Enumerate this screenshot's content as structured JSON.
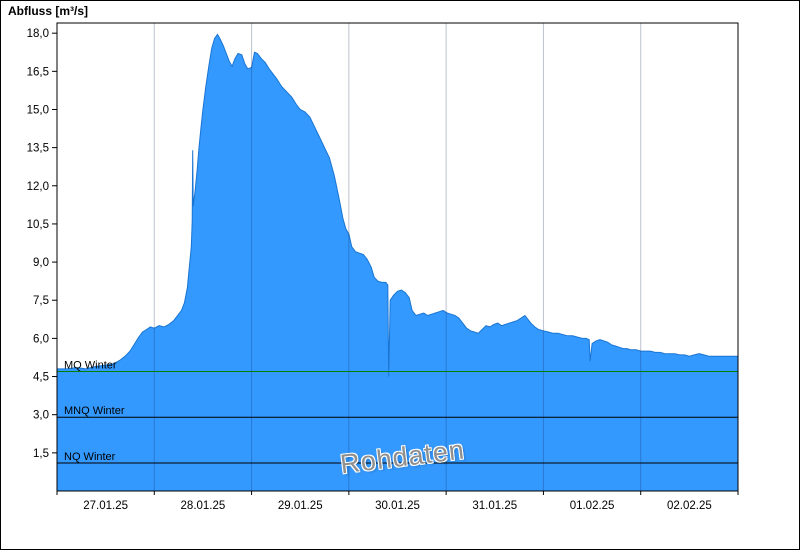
{
  "title": "Abfluss [m³/s]",
  "watermark": "Rohdaten",
  "chart_data": {
    "type": "area",
    "title": "Abfluss [m³/s]",
    "xlabel": "",
    "ylabel": "Abfluss [m³/s]",
    "x_unit": "days since 27.01.25 00:00",
    "xlim": [
      0,
      7
    ],
    "ylim": [
      0,
      18.4
    ],
    "grid": "vertical-day-boundaries-only",
    "legend": "none",
    "colors": {
      "area_fill": "#3399FF",
      "area_stroke": "#1A75D2",
      "grid": "rgba(20,40,90,0.28)",
      "frame": "#000000",
      "mq_line": "#008000",
      "ref_line": "#000000"
    },
    "yticks": [
      1.5,
      3,
      4.5,
      6,
      7.5,
      9,
      10.5,
      12,
      13.5,
      15,
      16.5,
      18
    ],
    "ytick_labels": [
      "1,5",
      "3,0",
      "4,5",
      "6,0",
      "7,5",
      "9,0",
      "10,5",
      "12,0",
      "13,5",
      "15,0",
      "16,5",
      "18,0"
    ],
    "xtick_positions": [
      0.5,
      1.5,
      2.5,
      3.5,
      4.5,
      5.5,
      6.5
    ],
    "xtick_labels": [
      "27.01.25",
      "28.01.25",
      "29.01.25",
      "30.01.25",
      "31.01.25",
      "01.02.25",
      "02.02.25"
    ],
    "day_boundaries": [
      1,
      2,
      3,
      4,
      5,
      6
    ],
    "reference_lines": [
      {
        "label": "MQ Winter",
        "value": 4.7,
        "color": "#008000"
      },
      {
        "label": "MNQ Winter",
        "value": 2.9,
        "color": "#000000"
      },
      {
        "label": "NQ Winter",
        "value": 1.1,
        "color": "#000000"
      }
    ],
    "series": [
      {
        "name": "Rohdaten",
        "points": [
          [
            0.0,
            4.8
          ],
          [
            0.1,
            4.8
          ],
          [
            0.2,
            4.85
          ],
          [
            0.3,
            4.8
          ],
          [
            0.4,
            4.9
          ],
          [
            0.5,
            4.95
          ],
          [
            0.58,
            5.0
          ],
          [
            0.65,
            5.15
          ],
          [
            0.7,
            5.3
          ],
          [
            0.75,
            5.5
          ],
          [
            0.8,
            5.8
          ],
          [
            0.84,
            6.05
          ],
          [
            0.88,
            6.25
          ],
          [
            0.92,
            6.35
          ],
          [
            0.96,
            6.45
          ],
          [
            1.0,
            6.4
          ],
          [
            1.05,
            6.5
          ],
          [
            1.1,
            6.45
          ],
          [
            1.15,
            6.55
          ],
          [
            1.2,
            6.7
          ],
          [
            1.24,
            6.9
          ],
          [
            1.28,
            7.1
          ],
          [
            1.31,
            7.4
          ],
          [
            1.34,
            8.0
          ],
          [
            1.36,
            8.8
          ],
          [
            1.38,
            9.6
          ],
          [
            1.39,
            10.6
          ],
          [
            1.395,
            13.4
          ],
          [
            1.4,
            11.2
          ],
          [
            1.42,
            11.8
          ],
          [
            1.44,
            12.6
          ],
          [
            1.46,
            13.5
          ],
          [
            1.48,
            14.3
          ],
          [
            1.5,
            15.0
          ],
          [
            1.53,
            15.9
          ],
          [
            1.56,
            16.7
          ],
          [
            1.59,
            17.4
          ],
          [
            1.62,
            17.8
          ],
          [
            1.65,
            17.95
          ],
          [
            1.68,
            17.75
          ],
          [
            1.71,
            17.5
          ],
          [
            1.74,
            17.2
          ],
          [
            1.77,
            16.9
          ],
          [
            1.8,
            16.7
          ],
          [
            1.83,
            17.0
          ],
          [
            1.86,
            17.2
          ],
          [
            1.9,
            17.15
          ],
          [
            1.93,
            16.8
          ],
          [
            1.96,
            16.6
          ],
          [
            2.0,
            16.65
          ],
          [
            2.03,
            17.25
          ],
          [
            2.06,
            17.2
          ],
          [
            2.1,
            17.0
          ],
          [
            2.14,
            16.85
          ],
          [
            2.18,
            16.6
          ],
          [
            2.22,
            16.4
          ],
          [
            2.26,
            16.2
          ],
          [
            2.31,
            15.9
          ],
          [
            2.36,
            15.7
          ],
          [
            2.41,
            15.5
          ],
          [
            2.46,
            15.2
          ],
          [
            2.5,
            15.0
          ],
          [
            2.55,
            14.9
          ],
          [
            2.6,
            14.7
          ],
          [
            2.65,
            14.3
          ],
          [
            2.7,
            13.9
          ],
          [
            2.75,
            13.5
          ],
          [
            2.8,
            13.1
          ],
          [
            2.85,
            12.4
          ],
          [
            2.9,
            11.5
          ],
          [
            2.94,
            10.7
          ],
          [
            2.97,
            10.3
          ],
          [
            3.0,
            10.1
          ],
          [
            3.03,
            9.6
          ],
          [
            3.07,
            9.4
          ],
          [
            3.11,
            9.35
          ],
          [
            3.15,
            9.3
          ],
          [
            3.19,
            9.1
          ],
          [
            3.23,
            8.8
          ],
          [
            3.26,
            8.4
          ],
          [
            3.3,
            8.25
          ],
          [
            3.34,
            8.2
          ],
          [
            3.38,
            8.2
          ],
          [
            3.4,
            8.1
          ],
          [
            3.41,
            4.5
          ],
          [
            3.425,
            7.5
          ],
          [
            3.46,
            7.7
          ],
          [
            3.5,
            7.85
          ],
          [
            3.54,
            7.9
          ],
          [
            3.58,
            7.8
          ],
          [
            3.62,
            7.6
          ],
          [
            3.65,
            7.1
          ],
          [
            3.69,
            6.9
          ],
          [
            3.73,
            6.95
          ],
          [
            3.77,
            7.0
          ],
          [
            3.81,
            6.9
          ],
          [
            3.85,
            6.95
          ],
          [
            3.89,
            7.0
          ],
          [
            3.93,
            7.05
          ],
          [
            3.97,
            7.1
          ],
          [
            4.01,
            7.0
          ],
          [
            4.05,
            6.95
          ],
          [
            4.09,
            6.9
          ],
          [
            4.13,
            6.8
          ],
          [
            4.17,
            6.6
          ],
          [
            4.21,
            6.4
          ],
          [
            4.25,
            6.3
          ],
          [
            4.29,
            6.25
          ],
          [
            4.33,
            6.2
          ],
          [
            4.37,
            6.35
          ],
          [
            4.41,
            6.5
          ],
          [
            4.45,
            6.45
          ],
          [
            4.49,
            6.55
          ],
          [
            4.53,
            6.6
          ],
          [
            4.57,
            6.5
          ],
          [
            4.61,
            6.55
          ],
          [
            4.65,
            6.6
          ],
          [
            4.69,
            6.65
          ],
          [
            4.73,
            6.7
          ],
          [
            4.77,
            6.8
          ],
          [
            4.81,
            6.9
          ],
          [
            4.84,
            6.75
          ],
          [
            4.87,
            6.6
          ],
          [
            4.91,
            6.45
          ],
          [
            4.95,
            6.35
          ],
          [
            5.0,
            6.3
          ],
          [
            5.05,
            6.25
          ],
          [
            5.1,
            6.2
          ],
          [
            5.15,
            6.2
          ],
          [
            5.2,
            6.15
          ],
          [
            5.25,
            6.1
          ],
          [
            5.3,
            6.1
          ],
          [
            5.35,
            6.05
          ],
          [
            5.4,
            6.0
          ],
          [
            5.44,
            6.0
          ],
          [
            5.47,
            5.95
          ],
          [
            5.48,
            5.1
          ],
          [
            5.5,
            5.8
          ],
          [
            5.54,
            5.9
          ],
          [
            5.58,
            5.95
          ],
          [
            5.62,
            5.9
          ],
          [
            5.66,
            5.85
          ],
          [
            5.7,
            5.75
          ],
          [
            5.74,
            5.7
          ],
          [
            5.78,
            5.65
          ],
          [
            5.82,
            5.6
          ],
          [
            5.86,
            5.6
          ],
          [
            5.9,
            5.55
          ],
          [
            5.95,
            5.55
          ],
          [
            6.0,
            5.5
          ],
          [
            6.05,
            5.5
          ],
          [
            6.1,
            5.5
          ],
          [
            6.15,
            5.45
          ],
          [
            6.2,
            5.45
          ],
          [
            6.25,
            5.4
          ],
          [
            6.3,
            5.4
          ],
          [
            6.35,
            5.4
          ],
          [
            6.4,
            5.35
          ],
          [
            6.45,
            5.35
          ],
          [
            6.5,
            5.3
          ],
          [
            6.55,
            5.35
          ],
          [
            6.6,
            5.4
          ],
          [
            6.65,
            5.35
          ],
          [
            6.7,
            5.3
          ],
          [
            6.75,
            5.3
          ],
          [
            6.8,
            5.3
          ],
          [
            6.85,
            5.3
          ],
          [
            6.9,
            5.3
          ],
          [
            6.95,
            5.3
          ],
          [
            7.0,
            5.3
          ]
        ]
      }
    ]
  }
}
